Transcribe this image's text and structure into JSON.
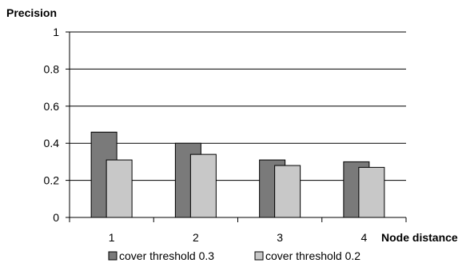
{
  "chart_data": {
    "type": "bar",
    "title": "",
    "xlabel": "Node distance",
    "ylabel": "Precision",
    "categories": [
      "1",
      "2",
      "3",
      "4"
    ],
    "ylim": [
      0,
      1
    ],
    "yticks": [
      "0",
      "0.2",
      "0.4",
      "0.6",
      "0.8",
      "1"
    ],
    "grid": true,
    "legend_position": "bottom",
    "series": [
      {
        "name": "cover threshold 0.3",
        "values": [
          0.46,
          0.4,
          0.31,
          0.3
        ],
        "color": "#7a7a7a"
      },
      {
        "name": "cover threshold 0.2",
        "values": [
          0.31,
          0.34,
          0.28,
          0.27
        ],
        "color": "#c8c8c8"
      }
    ]
  }
}
